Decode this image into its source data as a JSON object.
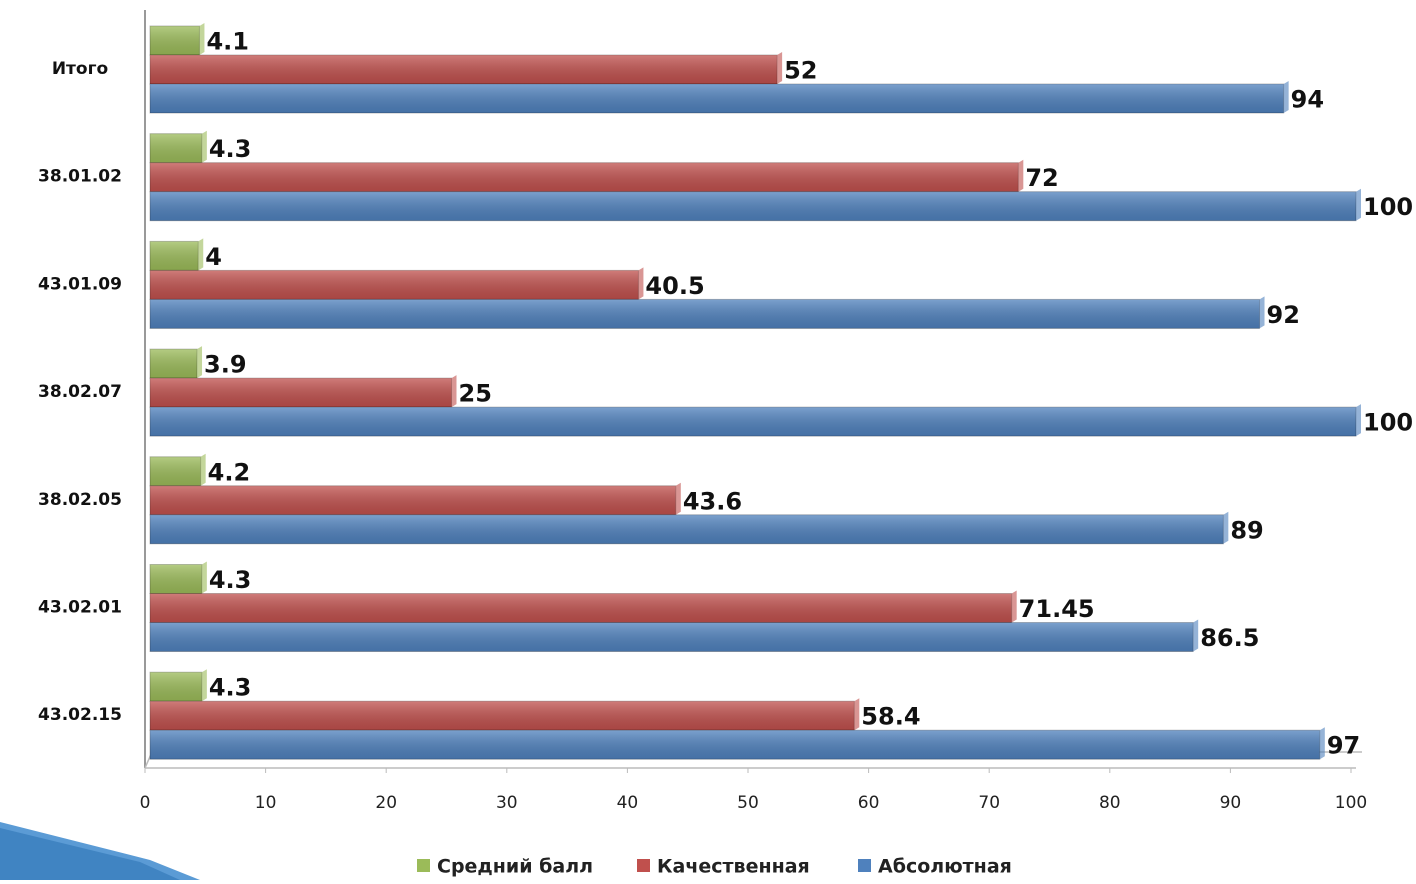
{
  "chart_data": {
    "type": "bar",
    "orientation": "horizontal",
    "categories": [
      "Итого",
      "38.01.02",
      "43.01.09",
      "38.02.07",
      "38.02.05",
      "43.02.01",
      "43.02.15"
    ],
    "series": [
      {
        "name": "Средний балл",
        "color": "#9bbb59",
        "values": [
          4.1,
          4.3,
          4,
          3.9,
          4.2,
          4.3,
          4.3
        ]
      },
      {
        "name": "Качественная",
        "color": "#c0504d",
        "values": [
          52,
          72,
          40.5,
          25,
          43.6,
          71.45,
          58.4
        ]
      },
      {
        "name": "Абсолютная",
        "color": "#4f81bd",
        "values": [
          94,
          100,
          92,
          100,
          89,
          86.5,
          97
        ]
      }
    ],
    "xlim": [
      0,
      100
    ],
    "xticks": [
      0,
      10,
      20,
      30,
      40,
      50,
      60,
      70,
      80,
      90,
      100
    ],
    "grid": false,
    "legend": "bottom"
  }
}
